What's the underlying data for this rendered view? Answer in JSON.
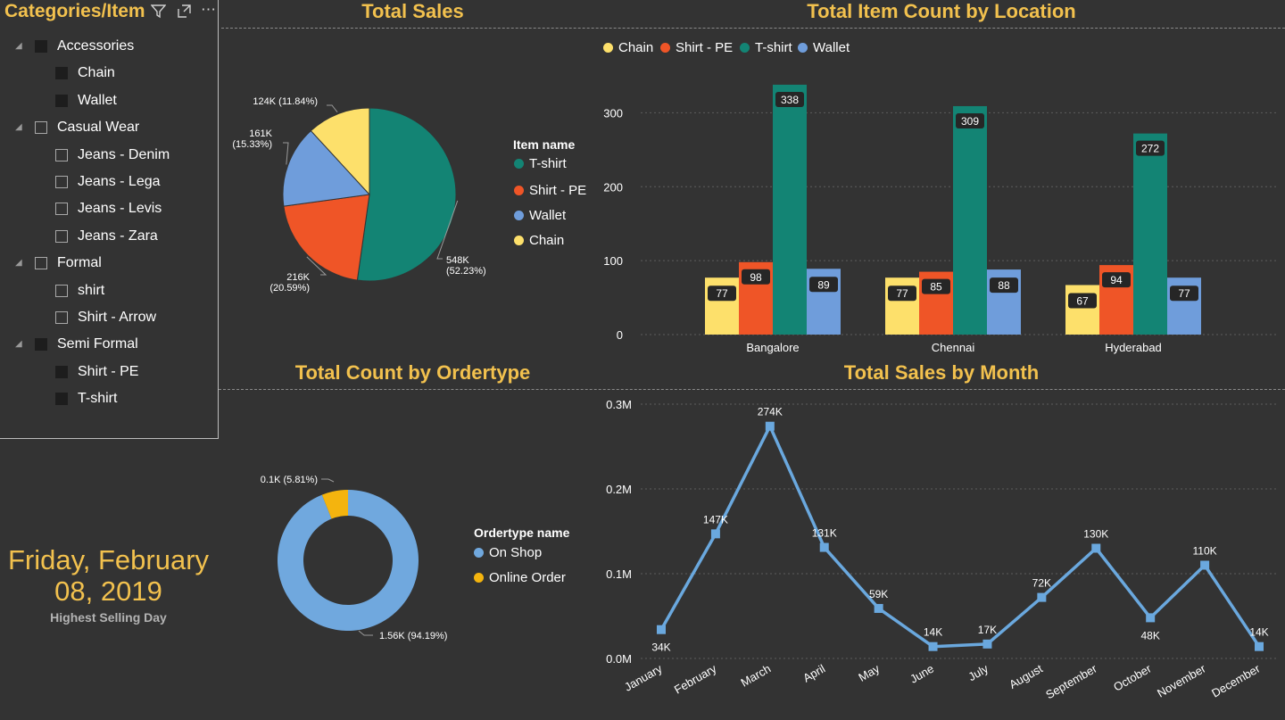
{
  "slicer": {
    "title": "Categories/Item",
    "items": [
      {
        "label": "Accessories",
        "level": 0,
        "checked": "filled"
      },
      {
        "label": "Chain",
        "level": 1,
        "checked": "filled"
      },
      {
        "label": "Wallet",
        "level": 1,
        "checked": "filled"
      },
      {
        "label": "Casual Wear",
        "level": 0,
        "checked": "empty"
      },
      {
        "label": "Jeans - Denim",
        "level": 1,
        "checked": "empty"
      },
      {
        "label": "Jeans - Lega",
        "level": 1,
        "checked": "empty"
      },
      {
        "label": "Jeans - Levis",
        "level": 1,
        "checked": "empty"
      },
      {
        "label": "Jeans - Zara",
        "level": 1,
        "checked": "empty"
      },
      {
        "label": "Formal",
        "level": 0,
        "checked": "empty"
      },
      {
        "label": "shirt",
        "level": 1,
        "checked": "empty"
      },
      {
        "label": "Shirt - Arrow",
        "level": 1,
        "checked": "empty"
      },
      {
        "label": "Semi Formal",
        "level": 0,
        "checked": "filled"
      },
      {
        "label": "Shirt - PE",
        "level": 1,
        "checked": "filled"
      },
      {
        "label": "T-shirt",
        "level": 1,
        "checked": "filled"
      }
    ],
    "icons": [
      "filter-icon",
      "focus-mode-icon",
      "more-options-icon"
    ]
  },
  "date_card": {
    "value": "Friday, February 08, 2019",
    "caption": "Highest Selling Day"
  },
  "colors": {
    "accent": "#f2c14e",
    "tshirt": "#138474",
    "shirt_pe": "#ef5527",
    "wallet": "#6f9ddb",
    "chain": "#fde06b",
    "on_shop": "#70a8de",
    "online_order": "#f4b40e",
    "line": "#6aa8de"
  },
  "chart_data": [
    {
      "id": "total-sales",
      "type": "pie",
      "title": "Total Sales",
      "legend_title": "Item name",
      "legend_position": "right",
      "slices": [
        {
          "name": "T-shirt",
          "value": 548000,
          "label": "548K",
          "pct": "(52.23%)"
        },
        {
          "name": "Shirt - PE",
          "value": 216000,
          "label": "216K",
          "pct": "(20.59%)"
        },
        {
          "name": "Wallet",
          "value": 161000,
          "label": "161K",
          "pct": "(15.33%)"
        },
        {
          "name": "Chain",
          "value": 124000,
          "label": "124K",
          "pct": "(11.84%)"
        }
      ]
    },
    {
      "id": "item-count-location",
      "type": "bar",
      "title": "Total Item Count by Location",
      "legend_position": "top-left",
      "categories": [
        "Bangalore",
        "Chennai",
        "Hyderabad"
      ],
      "ylim": [
        0,
        350
      ],
      "yticks": [
        0,
        100,
        200,
        300
      ],
      "grid": true,
      "series": [
        {
          "name": "Chain",
          "values": [
            77,
            77,
            67
          ]
        },
        {
          "name": "Shirt - PE",
          "values": [
            98,
            85,
            94
          ]
        },
        {
          "name": "T-shirt",
          "values": [
            338,
            309,
            272
          ]
        },
        {
          "name": "Wallet",
          "values": [
            89,
            88,
            77
          ]
        }
      ]
    },
    {
      "id": "count-ordertype",
      "type": "pie",
      "donut": true,
      "title": "Total Count by Ordertype",
      "legend_title": "Ordertype name",
      "legend_position": "right",
      "slices": [
        {
          "name": "On Shop",
          "value": 1560,
          "label": "1.56K (94.19%)"
        },
        {
          "name": "Online Order",
          "value": 100,
          "label": "0.1K (5.81%)"
        }
      ]
    },
    {
      "id": "sales-month",
      "type": "line",
      "title": "Total Sales by Month",
      "ylim": [
        0,
        300000
      ],
      "yticks": [
        {
          "v": 0,
          "label": "0.0M"
        },
        {
          "v": 100000,
          "label": "0.1M"
        },
        {
          "v": 200000,
          "label": "0.2M"
        },
        {
          "v": 300000,
          "label": "0.3M"
        }
      ],
      "grid": true,
      "x": [
        "January",
        "February",
        "March",
        "April",
        "May",
        "June",
        "July",
        "August",
        "September",
        "October",
        "November",
        "December"
      ],
      "values": [
        34000,
        147000,
        274000,
        131000,
        59000,
        14000,
        17000,
        72000,
        130000,
        48000,
        110000,
        14000
      ],
      "labels": [
        "34K",
        "147K",
        "274K",
        "131K",
        "59K",
        "14K",
        "17K",
        "72K",
        "130K",
        "48K",
        "110K",
        "14K"
      ]
    }
  ]
}
